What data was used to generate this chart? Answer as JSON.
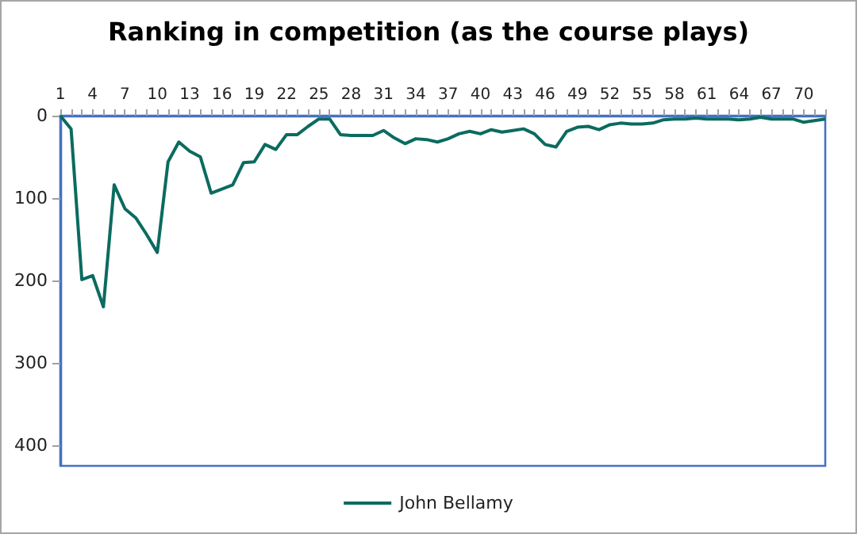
{
  "chart_data": {
    "type": "line",
    "title": "Ranking in competition (as the course plays)",
    "categories": [
      "1",
      null,
      null,
      "4",
      null,
      null,
      "7",
      null,
      null,
      "10",
      null,
      null,
      "13",
      null,
      null,
      "16",
      null,
      null,
      "19",
      null,
      null,
      "22",
      null,
      null,
      "25",
      null,
      null,
      "28",
      null,
      null,
      "31",
      null,
      null,
      "34",
      null,
      null,
      "37",
      null,
      null,
      "40",
      null,
      null,
      "43",
      null,
      null,
      "46",
      null,
      null,
      "49",
      null,
      null,
      "52",
      null,
      null,
      "55",
      null,
      null,
      "58",
      null,
      null,
      "61",
      null,
      null,
      "64",
      null,
      null,
      "67",
      null,
      null,
      "70",
      null,
      null
    ],
    "series": [
      {
        "name": "John Bellamy",
        "color": "#0b6b5f",
        "values": [
          0,
          16,
          199,
          194,
          232,
          84,
          113,
          124,
          144,
          166,
          56,
          32,
          43,
          50,
          94,
          89,
          84,
          57,
          56,
          35,
          41,
          23,
          23,
          13,
          4,
          4,
          23,
          24,
          24,
          24,
          18,
          27,
          34,
          28,
          29,
          32,
          28,
          22,
          19,
          22,
          17,
          20,
          18,
          16,
          22,
          35,
          38,
          19,
          14,
          13,
          17,
          11,
          9,
          10,
          10,
          9,
          5,
          4,
          4,
          3,
          4,
          4,
          4,
          5,
          4,
          2,
          4,
          4,
          4,
          8,
          6,
          4
        ]
      }
    ],
    "ylim": [
      425,
      0
    ],
    "yticks": [
      0,
      100,
      200,
      300,
      400
    ],
    "grid": false,
    "legend": "bottom",
    "marker": "none",
    "line_style": "solid"
  }
}
